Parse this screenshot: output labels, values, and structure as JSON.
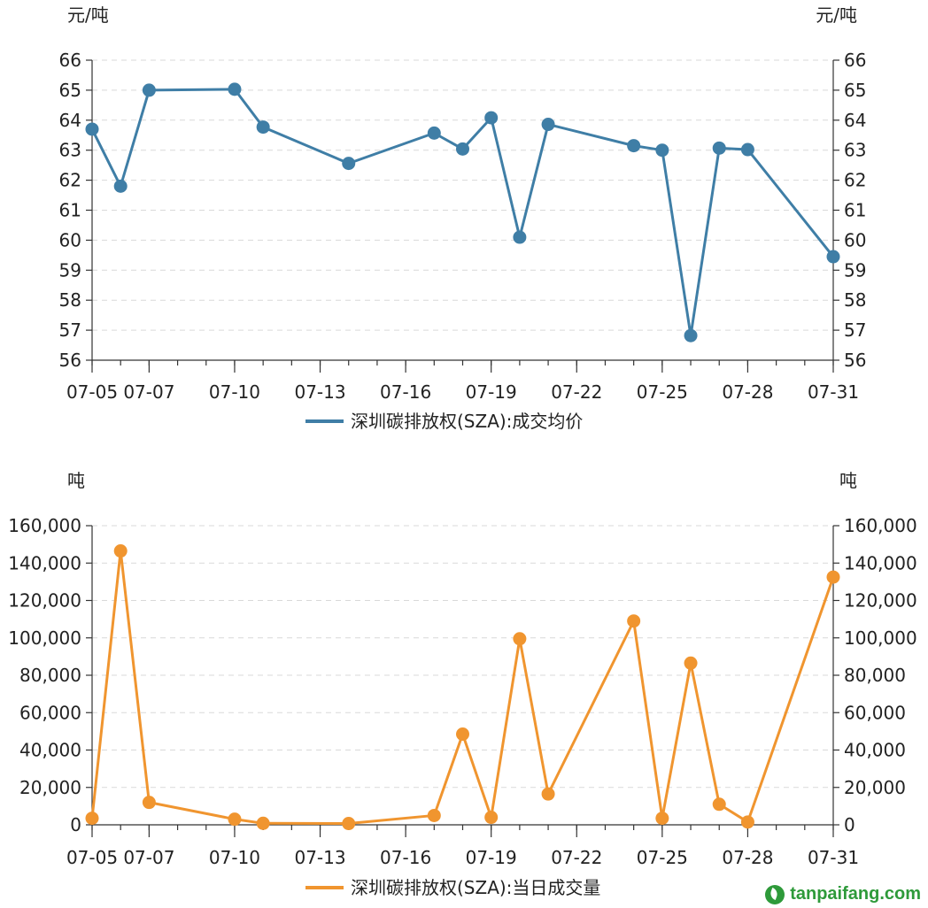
{
  "chart_data": [
    {
      "type": "line",
      "unit_left": "元/吨",
      "unit_right": "元/吨",
      "legend": "深圳碳排放权(SZA):成交均价",
      "color": "#3f7ea6",
      "ylim": [
        56,
        66
      ],
      "y_ticks": [
        "56",
        "57",
        "58",
        "59",
        "60",
        "61",
        "62",
        "63",
        "64",
        "65",
        "66"
      ],
      "x_ticks": [
        "07-05",
        "07-07",
        "07-10",
        "07-13",
        "07-16",
        "07-19",
        "07-22",
        "07-25",
        "07-28",
        "07-31"
      ],
      "grid": "horizontal dashed",
      "series": [
        {
          "name": "深圳碳排放权(SZA):成交均价",
          "x": [
            "07-05",
            "07-06",
            "07-07",
            "07-10",
            "07-11",
            "07-14",
            "07-17",
            "07-18",
            "07-19",
            "07-20",
            "07-21",
            "07-24",
            "07-25",
            "07-26",
            "07-27",
            "07-28",
            "07-31"
          ],
          "values": [
            63.7,
            61.8,
            65.0,
            65.03,
            63.77,
            62.56,
            63.57,
            63.04,
            64.08,
            60.1,
            63.86,
            63.15,
            63.0,
            56.82,
            63.07,
            63.02,
            59.45
          ]
        }
      ]
    },
    {
      "type": "line",
      "unit_left": "吨",
      "unit_right": "吨",
      "legend": "深圳碳排放权(SZA):当日成交量",
      "color": "#f0952f",
      "ylim": [
        0,
        160000
      ],
      "y_ticks": [
        "0",
        "20,000",
        "40,000",
        "60,000",
        "80,000",
        "100,000",
        "120,000",
        "140,000",
        "160,000"
      ],
      "x_ticks": [
        "07-05",
        "07-07",
        "07-10",
        "07-13",
        "07-16",
        "07-19",
        "07-22",
        "07-25",
        "07-28",
        "07-31"
      ],
      "grid": "horizontal dashed",
      "series": [
        {
          "name": "深圳碳排放权(SZA):当日成交量",
          "x": [
            "07-05",
            "07-06",
            "07-07",
            "07-10",
            "07-11",
            "07-14",
            "07-17",
            "07-18",
            "07-19",
            "07-20",
            "07-21",
            "07-24",
            "07-25",
            "07-26",
            "07-27",
            "07-28",
            "07-31"
          ],
          "values": [
            3500,
            146500,
            12000,
            3000,
            800,
            700,
            5000,
            48500,
            4000,
            99500,
            16500,
            109000,
            3500,
            86500,
            11000,
            1500,
            132500
          ]
        }
      ]
    }
  ],
  "watermark": {
    "text": "tanpaifang.com",
    "icon": "leaf-icon",
    "color": "#2e9a3a"
  }
}
